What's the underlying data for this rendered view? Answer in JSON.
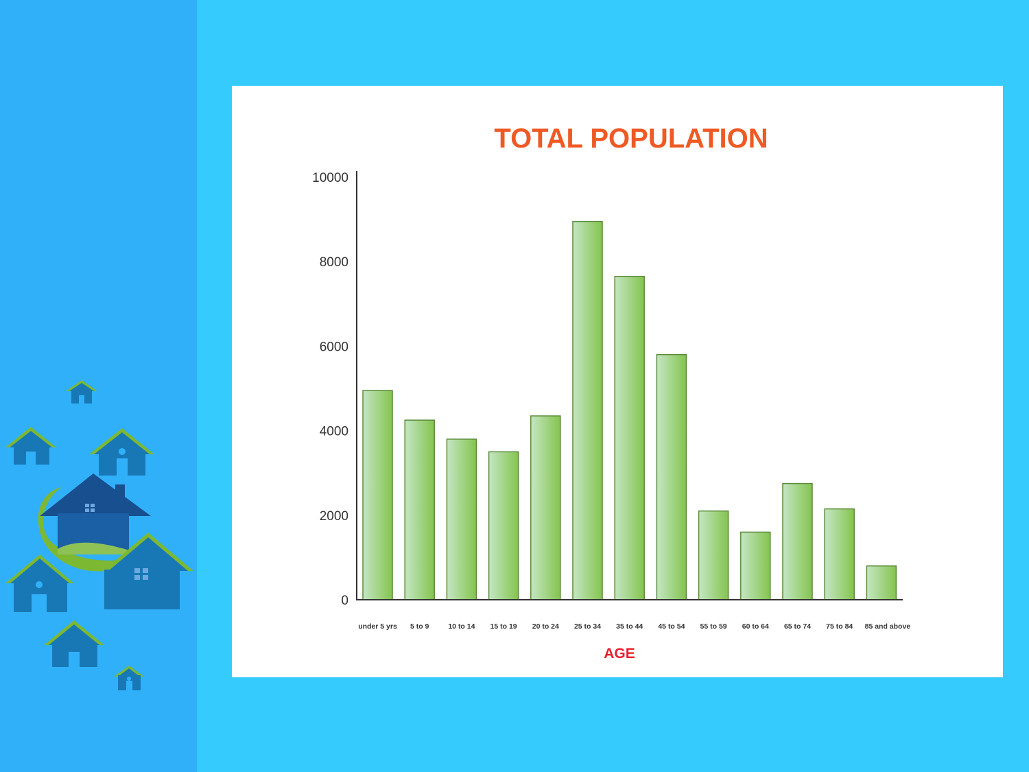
{
  "chart_data": {
    "type": "bar",
    "title": "TOTAL POPULATION",
    "xlabel": "AGE",
    "ylabel": "",
    "ylim": [
      0,
      10000
    ],
    "yticks": [
      0,
      2000,
      4000,
      6000,
      8000,
      10000
    ],
    "categories": [
      "under 5 yrs",
      "5 to 9",
      "10 to 14",
      "15 to 19",
      "20 to 24",
      "25 to 34",
      "35 to 44",
      "45 to 54",
      "55 to 59",
      "60 to 64",
      "65 to 74",
      "75 to 84",
      "85 and above"
    ],
    "values": [
      4950,
      4250,
      3800,
      3500,
      4350,
      8950,
      7650,
      5800,
      2100,
      1600,
      2750,
      2150,
      800
    ],
    "grid": false,
    "legend": "none"
  },
  "colors": {
    "page_background": "#35cbfd",
    "sidebar": "#31b0fa",
    "card": "#ffffff",
    "title": "#ef5a24",
    "xlabel": "#e8202e",
    "bar_light": "#c4e6c4",
    "bar_dark": "#84c44e",
    "bar_outline": "#5c8a3a",
    "house_body": "#1878b6",
    "house_roof": "#7cb832",
    "house_dark": "#174f8f"
  },
  "icons": {
    "decoration": "houses-cluster-icon"
  }
}
